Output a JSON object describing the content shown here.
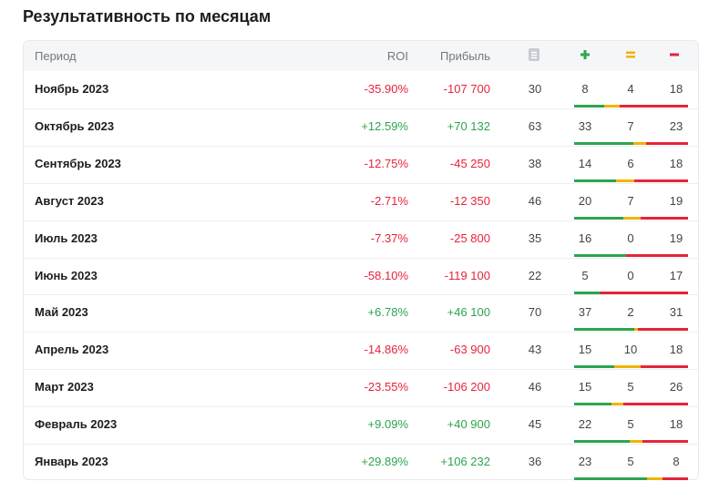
{
  "title": "Результативность по месяцам",
  "table": {
    "headers": [
      "Период",
      "ROI",
      "Прибыль"
    ],
    "rows": [
      {
        "period": "Ноябрь 2023",
        "roi": "-35.90%",
        "profit": "-107 700",
        "bets": 30,
        "wins": 8,
        "draws": 4,
        "losses": 18
      },
      {
        "period": "Октябрь 2023",
        "roi": "+12.59%",
        "profit": "+70 132",
        "bets": 63,
        "wins": 33,
        "draws": 7,
        "losses": 23
      },
      {
        "period": "Сентябрь 2023",
        "roi": "-12.75%",
        "profit": "-45 250",
        "bets": 38,
        "wins": 14,
        "draws": 6,
        "losses": 18
      },
      {
        "period": "Август 2023",
        "roi": "-2.71%",
        "profit": "-12 350",
        "bets": 46,
        "wins": 20,
        "draws": 7,
        "losses": 19
      },
      {
        "period": "Июль 2023",
        "roi": "-7.37%",
        "profit": "-25 800",
        "bets": 35,
        "wins": 16,
        "draws": 0,
        "losses": 19
      },
      {
        "period": "Июнь 2023",
        "roi": "-58.10%",
        "profit": "-119 100",
        "bets": 22,
        "wins": 5,
        "draws": 0,
        "losses": 17
      },
      {
        "period": "Май 2023",
        "roi": "+6.78%",
        "profit": "+46 100",
        "bets": 70,
        "wins": 37,
        "draws": 2,
        "losses": 31
      },
      {
        "period": "Апрель 2023",
        "roi": "-14.86%",
        "profit": "-63 900",
        "bets": 43,
        "wins": 15,
        "draws": 10,
        "losses": 18
      },
      {
        "period": "Март 2023",
        "roi": "-23.55%",
        "profit": "-106 200",
        "bets": 46,
        "wins": 15,
        "draws": 5,
        "losses": 26
      },
      {
        "period": "Февраль 2023",
        "roi": "+9.09%",
        "profit": "+40 900",
        "bets": 45,
        "wins": 22,
        "draws": 5,
        "losses": 18
      },
      {
        "period": "Январь 2023",
        "roi": "+29.89%",
        "profit": "+106 232",
        "bets": 36,
        "wins": 23,
        "draws": 5,
        "losses": 8
      }
    ]
  }
}
